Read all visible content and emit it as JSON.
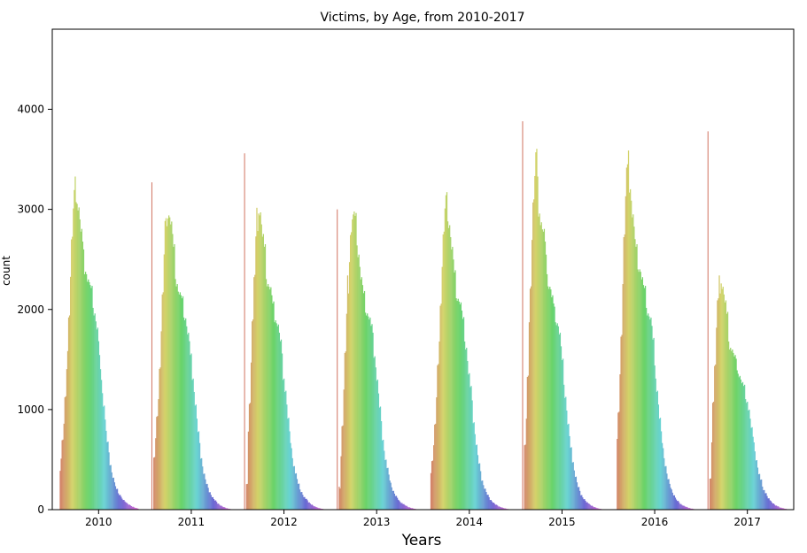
{
  "chart_data": {
    "type": "bar",
    "title": "Victims, by Age, from 2010-2017",
    "xlabel": "Years",
    "ylabel": "count",
    "categories": [
      "2010",
      "2011",
      "2012",
      "2013",
      "2014",
      "2015",
      "2016",
      "2017"
    ],
    "yticks": [
      0,
      1000,
      2000,
      3000,
      4000
    ],
    "ylim": [
      0,
      4800
    ],
    "grid": false,
    "legend": "none",
    "hue": "age",
    "series_note_values": "approximate counts per age (0-84) within each year group",
    "peak_value_age0": [
      0,
      3270,
      3560,
      3000,
      0,
      3880,
      0,
      3780
    ],
    "age_profiles": [
      [
        400,
        520,
        700,
        850,
        1100,
        1350,
        1650,
        1980,
        2350,
        2700,
        2950,
        3100,
        3200,
        3150,
        3050,
        2900,
        2750,
        2600,
        2500,
        2450,
        2400,
        2300,
        2250,
        2200,
        2150,
        2100,
        2000,
        1900,
        1800,
        1650,
        1500,
        1350,
        1200,
        1050,
        900,
        780,
        660,
        550,
        460,
        380,
        320,
        270,
        230,
        200,
        170,
        150,
        130,
        110,
        95,
        80,
        70,
        60,
        50,
        42,
        35,
        28,
        22,
        18,
        14,
        10
      ],
      [
        0,
        520,
        700,
        900,
        1150,
        1450,
        1800,
        2150,
        2500,
        2800,
        2950,
        3000,
        2950,
        2850,
        2700,
        2550,
        2400,
        2300,
        2200,
        2150,
        2100,
        2050,
        2000,
        1950,
        1850,
        1750,
        1650,
        1500,
        1350,
        1200,
        1050,
        900,
        760,
        640,
        530,
        440,
        360,
        300,
        250,
        210,
        180,
        150,
        125,
        105,
        90,
        75,
        62,
        50,
        40,
        32,
        25,
        20,
        15,
        11,
        8,
        5
      ],
      [
        0,
        250,
        750,
        1100,
        1500,
        1900,
        2300,
        2650,
        2900,
        3050,
        3000,
        2850,
        2700,
        2550,
        2400,
        2300,
        2250,
        2200,
        2100,
        2000,
        1950,
        1900,
        1850,
        1750,
        1650,
        1500,
        1350,
        1200,
        1050,
        900,
        760,
        640,
        530,
        440,
        360,
        300,
        250,
        210,
        180,
        150,
        125,
        105,
        90,
        75,
        62,
        50,
        40,
        32,
        25,
        20,
        15,
        11,
        8,
        5
      ],
      [
        0,
        220,
        550,
        850,
        1200,
        1550,
        1900,
        2250,
        2550,
        2800,
        2900,
        2920,
        2850,
        2750,
        2600,
        2450,
        2300,
        2200,
        2100,
        2050,
        2000,
        1950,
        1900,
        1800,
        1700,
        1580,
        1450,
        1300,
        1150,
        1000,
        850,
        720,
        600,
        500,
        410,
        340,
        280,
        230,
        190,
        160,
        135,
        115,
        95,
        80,
        67,
        55,
        45,
        37,
        30,
        24,
        19,
        15,
        11,
        8,
        5
      ],
      [
        380,
        500,
        650,
        850,
        1100,
        1400,
        1750,
        2100,
        2450,
        2750,
        2950,
        3050,
        3000,
        2900,
        2750,
        2600,
        2450,
        2300,
        2200,
        2150,
        2100,
        2050,
        1950,
        1850,
        1750,
        1650,
        1500,
        1350,
        1200,
        1050,
        900,
        770,
        650,
        540,
        450,
        370,
        300,
        250,
        210,
        175,
        145,
        120,
        100,
        85,
        70,
        58,
        48,
        40,
        33,
        27,
        22,
        17,
        13,
        10,
        7,
        5
      ],
      [
        0,
        650,
        900,
        1300,
        1800,
        2300,
        2750,
        3100,
        3300,
        3500,
        3200,
        3050,
        2900,
        2800,
        2750,
        2600,
        2450,
        2300,
        2250,
        2200,
        2100,
        2000,
        1950,
        1900,
        1850,
        1750,
        1600,
        1450,
        1300,
        1150,
        1000,
        850,
        720,
        600,
        490,
        400,
        330,
        270,
        220,
        180,
        150,
        125,
        105,
        88,
        72,
        60,
        50,
        40,
        32,
        25,
        20,
        15,
        11,
        8,
        5
      ],
      [
        0,
        700,
        950,
        1300,
        1800,
        2300,
        2750,
        3100,
        3350,
        3450,
        3300,
        3150,
        2950,
        2800,
        2650,
        2550,
        2500,
        2450,
        2400,
        2300,
        2200,
        2150,
        2100,
        2000,
        1950,
        1900,
        1800,
        1650,
        1500,
        1350,
        1200,
        1050,
        900,
        760,
        640,
        530,
        440,
        360,
        300,
        250,
        210,
        175,
        145,
        120,
        100,
        85,
        70,
        58,
        48,
        40,
        33,
        27,
        22,
        17,
        13,
        10,
        7,
        5
      ],
      [
        0,
        300,
        700,
        1100,
        1450,
        1800,
        2050,
        2250,
        2330,
        2250,
        2150,
        2050,
        1900,
        1750,
        1650,
        1600,
        1550,
        1500,
        1450,
        1400,
        1350,
        1300,
        1250,
        1200,
        1150,
        1100,
        1000,
        900,
        800,
        700,
        600,
        500,
        420,
        350,
        290,
        240,
        200,
        165,
        135,
        110,
        90,
        75,
        62,
        50,
        40,
        32,
        25,
        20,
        15,
        11,
        8,
        5
      ]
    ]
  }
}
